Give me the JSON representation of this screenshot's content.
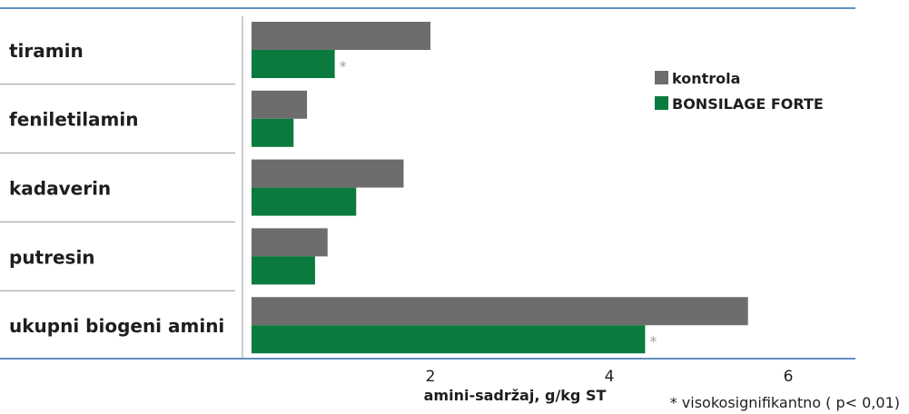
{
  "chart_data": {
    "type": "bar",
    "orientation": "horizontal",
    "categories": [
      "tiramin",
      "feniletilamin",
      "kadaverin",
      "putresin",
      "ukupni biogeni amini"
    ],
    "series": [
      {
        "name": "kontrola",
        "color": "#6d6d6d",
        "values": [
          2.0,
          0.62,
          1.7,
          0.85,
          5.55
        ]
      },
      {
        "name": "BONSILAGE FORTE",
        "color": "#0a7a3e",
        "values": [
          0.93,
          0.47,
          1.17,
          0.71,
          4.4
        ]
      }
    ],
    "significance": [
      [
        "",
        "*"
      ],
      [
        "",
        ""
      ],
      [
        "",
        ""
      ],
      [
        "",
        ""
      ],
      [
        "",
        "*"
      ]
    ],
    "xlabel": "amini-sadržaj, g/kg ST",
    "xticks": [
      2,
      4,
      6
    ],
    "xlim": [
      0,
      6.8
    ],
    "legend_position": "right",
    "footnote": "* visokosignifikantno  ( p< 0,01)",
    "divider_color": "#2a6aa8"
  }
}
